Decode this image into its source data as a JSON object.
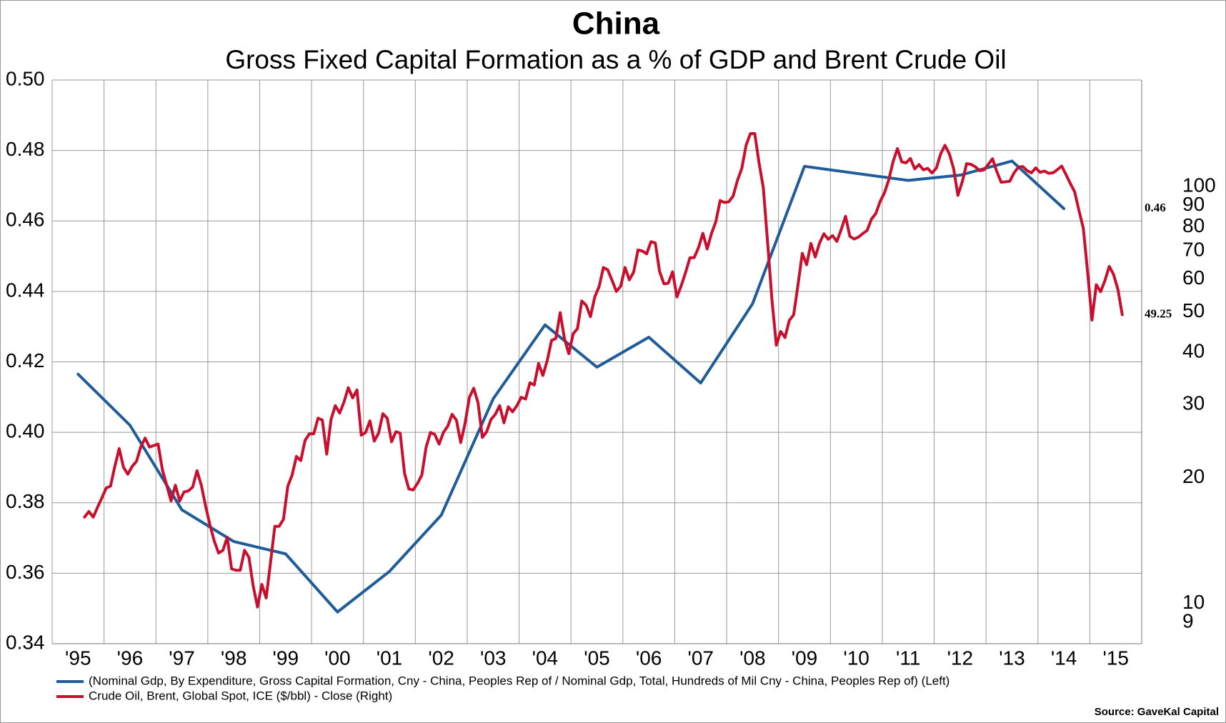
{
  "chart_data": {
    "type": "line",
    "title": "China",
    "subtitle": "Gross Fixed Capital Formation as a % of GDP and Brent Crude Oil",
    "source": "Source: GaveKal Capital",
    "xlim": [
      1995,
      2016
    ],
    "xticks": [
      {
        "value": 1995,
        "label": "'95"
      },
      {
        "value": 1996,
        "label": "'96"
      },
      {
        "value": 1997,
        "label": "'97"
      },
      {
        "value": 1998,
        "label": "'98"
      },
      {
        "value": 1999,
        "label": "'99"
      },
      {
        "value": 2000,
        "label": "'00"
      },
      {
        "value": 2001,
        "label": "'01"
      },
      {
        "value": 2002,
        "label": "'02"
      },
      {
        "value": 2003,
        "label": "'03"
      },
      {
        "value": 2004,
        "label": "'04"
      },
      {
        "value": 2005,
        "label": "'05"
      },
      {
        "value": 2006,
        "label": "'06"
      },
      {
        "value": 2007,
        "label": "'07"
      },
      {
        "value": 2008,
        "label": "'08"
      },
      {
        "value": 2009,
        "label": "'09"
      },
      {
        "value": 2010,
        "label": "'10"
      },
      {
        "value": 2011,
        "label": "'11"
      },
      {
        "value": 2012,
        "label": "'12"
      },
      {
        "value": 2013,
        "label": "'13"
      },
      {
        "value": 2014,
        "label": "'14"
      },
      {
        "value": 2015,
        "label": "'15"
      }
    ],
    "ylim": [
      0.34,
      0.5
    ],
    "yticks": [
      0.34,
      0.36,
      0.38,
      {
        "value": 0.4,
        "label": "0.40"
      },
      0.42,
      0.44,
      0.46,
      0.48,
      {
        "value": 0.5,
        "label": "0.50"
      }
    ],
    "y2lim": [
      8,
      180
    ],
    "y2scale": "log",
    "y2ticks": [
      9,
      10,
      20,
      30,
      40,
      50,
      60,
      70,
      80,
      90,
      100
    ],
    "grid": true,
    "series": [
      {
        "name": "(Nominal Gdp, By Expenditure, Gross Capital Formation, Cny - China, Peoples Rep of / Nominal Gdp, Total, Hundreds of Mil Cny - China, Peoples Rep of)  (Left)",
        "color": "#1f5c99",
        "axis": "y",
        "last_value_label": true,
        "x": [
          1995.5,
          1996.5,
          1997.5,
          1998.5,
          1999.5,
          2000.5,
          2001.5,
          2002.5,
          2003.5,
          2004.5,
          2005.5,
          2006.5,
          2007.5,
          2008.5,
          2009.5,
          2010.5,
          2011.5,
          2012.5,
          2013.5,
          2014.5
        ],
        "values": [
          0.4165,
          0.402,
          0.378,
          0.369,
          0.3655,
          0.349,
          0.3605,
          0.3765,
          0.4095,
          0.4305,
          0.4185,
          0.427,
          0.414,
          0.4365,
          0.4755,
          0.4735,
          0.4715,
          0.473,
          0.477,
          0.4635
        ],
        "value_labels": [
          null,
          null,
          null,
          null,
          null,
          null,
          null,
          null,
          null,
          null,
          null,
          null,
          null,
          null,
          null,
          null,
          null,
          null,
          null,
          "0.46"
        ]
      },
      {
        "name": "Crude Oil, Brent, Global Spot, ICE ($/bbl) - Close  (Right)",
        "color": "#c8102e",
        "axis": "y2",
        "last_value_label": true,
        "x": [
          1995.625,
          1995.708,
          1995.792,
          1995.875,
          1995.958,
          1996.042,
          1996.125,
          1996.208,
          1996.292,
          1996.375,
          1996.458,
          1996.542,
          1996.625,
          1996.708,
          1996.792,
          1996.875,
          1996.958,
          1997.042,
          1997.125,
          1997.208,
          1997.292,
          1997.375,
          1997.458,
          1997.542,
          1997.625,
          1997.708,
          1997.792,
          1997.875,
          1997.958,
          1998.042,
          1998.125,
          1998.208,
          1998.292,
          1998.375,
          1998.458,
          1998.542,
          1998.625,
          1998.708,
          1998.792,
          1998.875,
          1998.958,
          1999.042,
          1999.125,
          1999.208,
          1999.292,
          1999.375,
          1999.458,
          1999.542,
          1999.625,
          1999.708,
          1999.792,
          1999.875,
          1999.958,
          2000.042,
          2000.125,
          2000.208,
          2000.292,
          2000.375,
          2000.458,
          2000.542,
          2000.625,
          2000.708,
          2000.792,
          2000.875,
          2000.958,
          2001.042,
          2001.125,
          2001.208,
          2001.292,
          2001.375,
          2001.458,
          2001.542,
          2001.625,
          2001.708,
          2001.792,
          2001.875,
          2001.958,
          2002.042,
          2002.125,
          2002.208,
          2002.292,
          2002.375,
          2002.458,
          2002.542,
          2002.625,
          2002.708,
          2002.792,
          2002.875,
          2002.958,
          2003.042,
          2003.125,
          2003.208,
          2003.292,
          2003.375,
          2003.458,
          2003.542,
          2003.625,
          2003.708,
          2003.792,
          2003.875,
          2003.958,
          2004.042,
          2004.125,
          2004.208,
          2004.292,
          2004.375,
          2004.458,
          2004.542,
          2004.625,
          2004.708,
          2004.792,
          2004.875,
          2004.958,
          2005.042,
          2005.125,
          2005.208,
          2005.292,
          2005.375,
          2005.458,
          2005.542,
          2005.625,
          2005.708,
          2005.792,
          2005.875,
          2005.958,
          2006.042,
          2006.125,
          2006.208,
          2006.292,
          2006.375,
          2006.458,
          2006.542,
          2006.625,
          2006.708,
          2006.792,
          2006.875,
          2006.958,
          2007.042,
          2007.125,
          2007.208,
          2007.292,
          2007.375,
          2007.458,
          2007.542,
          2007.625,
          2007.708,
          2007.792,
          2007.875,
          2007.958,
          2008.042,
          2008.125,
          2008.208,
          2008.292,
          2008.375,
          2008.458,
          2008.542,
          2008.625,
          2008.708,
          2008.792,
          2008.875,
          2008.958,
          2009.042,
          2009.125,
          2009.208,
          2009.292,
          2009.375,
          2009.458,
          2009.542,
          2009.625,
          2009.708,
          2009.792,
          2009.875,
          2009.958,
          2010.042,
          2010.125,
          2010.208,
          2010.292,
          2010.375,
          2010.458,
          2010.542,
          2010.625,
          2010.708,
          2010.792,
          2010.875,
          2010.958,
          2011.042,
          2011.125,
          2011.208,
          2011.292,
          2011.375,
          2011.458,
          2011.542,
          2011.625,
          2011.708,
          2011.792,
          2011.875,
          2011.958,
          2012.042,
          2012.125,
          2012.208,
          2012.292,
          2012.375,
          2012.458,
          2012.542,
          2012.625,
          2012.708,
          2012.792,
          2012.875,
          2012.958,
          2013.042,
          2013.125,
          2013.208,
          2013.292,
          2013.375,
          2013.458,
          2013.542,
          2013.625,
          2013.708,
          2013.792,
          2013.875,
          2013.958,
          2014.042,
          2014.125,
          2014.208,
          2014.292,
          2014.375,
          2014.458,
          2014.542,
          2014.625,
          2014.708,
          2014.792,
          2014.875,
          2014.958,
          2015.042,
          2015.125,
          2015.208,
          2015.292,
          2015.375,
          2015.458,
          2015.542,
          2015.625
        ],
        "values": [
          16.1,
          16.6,
          16.1,
          17.0,
          17.9,
          18.9,
          19.1,
          21.3,
          23.5,
          21.2,
          20.4,
          21.3,
          21.9,
          23.7,
          24.9,
          23.7,
          23.9,
          24.1,
          20.9,
          19.2,
          17.6,
          19.2,
          17.6,
          18.5,
          18.6,
          19.0,
          20.8,
          19.2,
          17.1,
          15.4,
          14.1,
          13.2,
          13.4,
          14.4,
          12.1,
          12.0,
          12.0,
          13.4,
          12.9,
          11.0,
          9.8,
          11.1,
          10.3,
          12.5,
          15.3,
          15.3,
          15.9,
          19.1,
          20.3,
          22.5,
          22.0,
          24.6,
          25.5,
          25.5,
          27.8,
          27.5,
          22.8,
          27.6,
          29.8,
          28.6,
          30.4,
          32.9,
          31.1,
          32.5,
          25.3,
          25.7,
          27.4,
          24.5,
          25.6,
          28.5,
          27.8,
          24.4,
          25.8,
          25.6,
          20.5,
          18.8,
          18.7,
          19.4,
          20.3,
          23.7,
          25.7,
          25.4,
          24.1,
          25.7,
          26.6,
          28.4,
          27.5,
          24.3,
          27.0,
          31.2,
          32.8,
          30.3,
          25.0,
          25.8,
          27.6,
          28.4,
          29.8,
          27.1,
          29.6,
          28.8,
          29.8,
          31.2,
          30.9,
          33.8,
          33.4,
          37.6,
          35.2,
          38.2,
          42.7,
          43.2,
          49.8,
          43.1,
          39.7,
          44.3,
          45.6,
          53.1,
          51.9,
          48.7,
          54.3,
          57.5,
          63.9,
          63.1,
          59.5,
          56.0,
          57.6,
          63.9,
          59.7,
          62.3,
          70.4,
          70.0,
          68.9,
          73.7,
          73.2,
          62.5,
          58.4,
          58.6,
          62.4,
          54.3,
          57.8,
          62.1,
          67.4,
          67.5,
          71.3,
          77.2,
          70.8,
          77.1,
          82.3,
          92.5,
          91.5,
          91.9,
          94.8,
          103.3,
          110.4,
          125.5,
          133.9,
          133.9,
          113.9,
          99.1,
          72.8,
          53.2,
          41.6,
          44.9,
          43.4,
          47.7,
          49.2,
          58.0,
          69.1,
          64.9,
          73.0,
          67.7,
          73.2,
          77.0,
          74.7,
          76.2,
          73.8,
          78.8,
          84.8,
          75.9,
          74.8,
          75.6,
          77.1,
          78.4,
          83.5,
          86.1,
          92.0,
          96.5,
          103.7,
          114.6,
          123.3,
          114.5,
          113.9,
          116.7,
          110.2,
          112.8,
          109.6,
          110.5,
          107.7,
          110.6,
          119.7,
          125.5,
          119.8,
          110.3,
          95.2,
          102.6,
          113.4,
          113.0,
          111.5,
          109.1,
          109.5,
          112.9,
          116.5,
          108.5,
          102.3,
          102.6,
          102.9,
          107.9,
          111.3,
          111.6,
          109.1,
          107.8,
          110.8,
          108.1,
          108.9,
          107.5,
          107.8,
          109.7,
          111.9,
          106.7,
          101.6,
          97.1,
          87.4,
          79.4,
          62.3,
          47.8,
          58.1,
          55.9,
          59.5,
          64.3,
          61.5,
          56.6,
          49.25
        ]
      }
    ]
  }
}
